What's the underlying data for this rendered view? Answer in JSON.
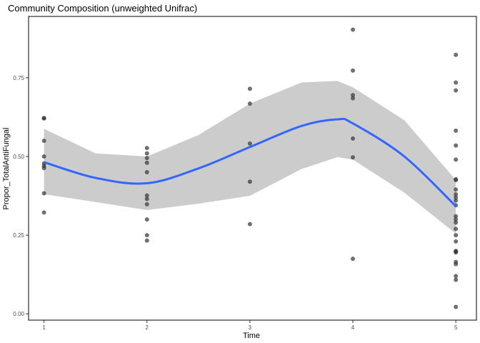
{
  "chart_data": {
    "type": "scatter",
    "title": "Community Composition (unweighted Unifrac)",
    "xlabel": "Time",
    "ylabel": "Propor_TotalAntiFungal",
    "x_ticks": [
      1,
      2,
      3,
      4,
      5
    ],
    "x_tick_labels": [
      "1",
      "2",
      "3",
      "4",
      "5"
    ],
    "y_ticks": [
      0,
      0.25,
      0.5,
      0.75
    ],
    "y_tick_labels": [
      "0.00",
      "0.25",
      "0.50",
      "0.75"
    ],
    "xlim": [
      0.85,
      5.2
    ],
    "ylim": [
      -0.02,
      0.945
    ],
    "grid": false,
    "colors": {
      "points": "#333333",
      "smooth_line": "#3366ff",
      "ribbon": "#cccccc",
      "panel_border": "#000000"
    },
    "points": [
      {
        "x": 1,
        "y": 0.622
      },
      {
        "x": 1,
        "y": 0.621
      },
      {
        "x": 1,
        "y": 0.55
      },
      {
        "x": 1,
        "y": 0.5
      },
      {
        "x": 1,
        "y": 0.478
      },
      {
        "x": 1,
        "y": 0.47
      },
      {
        "x": 1,
        "y": 0.463
      },
      {
        "x": 1,
        "y": 0.383
      },
      {
        "x": 1,
        "y": 0.322
      },
      {
        "x": 2,
        "y": 0.527
      },
      {
        "x": 2,
        "y": 0.51
      },
      {
        "x": 2,
        "y": 0.495
      },
      {
        "x": 2,
        "y": 0.48
      },
      {
        "x": 2,
        "y": 0.45
      },
      {
        "x": 2,
        "y": 0.376
      },
      {
        "x": 2,
        "y": 0.365
      },
      {
        "x": 2,
        "y": 0.348
      },
      {
        "x": 2,
        "y": 0.3
      },
      {
        "x": 2,
        "y": 0.25
      },
      {
        "x": 2,
        "y": 0.233
      },
      {
        "x": 3,
        "y": 0.715
      },
      {
        "x": 3,
        "y": 0.668
      },
      {
        "x": 3,
        "y": 0.541
      },
      {
        "x": 3,
        "y": 0.42
      },
      {
        "x": 3,
        "y": 0.285
      },
      {
        "x": 4,
        "y": 0.903
      },
      {
        "x": 4,
        "y": 0.773
      },
      {
        "x": 4,
        "y": 0.695
      },
      {
        "x": 4,
        "y": 0.685
      },
      {
        "x": 4,
        "y": 0.557
      },
      {
        "x": 4,
        "y": 0.497
      },
      {
        "x": 4,
        "y": 0.175
      },
      {
        "x": 5,
        "y": 0.823
      },
      {
        "x": 5,
        "y": 0.735
      },
      {
        "x": 5,
        "y": 0.71
      },
      {
        "x": 5,
        "y": 0.582
      },
      {
        "x": 5,
        "y": 0.535
      },
      {
        "x": 5,
        "y": 0.49
      },
      {
        "x": 5,
        "y": 0.428
      },
      {
        "x": 5,
        "y": 0.425
      },
      {
        "x": 5,
        "y": 0.395
      },
      {
        "x": 5,
        "y": 0.38
      },
      {
        "x": 5,
        "y": 0.37
      },
      {
        "x": 5,
        "y": 0.36
      },
      {
        "x": 5,
        "y": 0.345
      },
      {
        "x": 5,
        "y": 0.31
      },
      {
        "x": 5,
        "y": 0.3
      },
      {
        "x": 5,
        "y": 0.29
      },
      {
        "x": 5,
        "y": 0.27
      },
      {
        "x": 5,
        "y": 0.25
      },
      {
        "x": 5,
        "y": 0.23
      },
      {
        "x": 5,
        "y": 0.2
      },
      {
        "x": 5,
        "y": 0.198
      },
      {
        "x": 5,
        "y": 0.195
      },
      {
        "x": 5,
        "y": 0.165
      },
      {
        "x": 5,
        "y": 0.158
      },
      {
        "x": 5,
        "y": 0.12
      },
      {
        "x": 5,
        "y": 0.108
      },
      {
        "x": 5,
        "y": 0.022
      }
    ],
    "smooth": {
      "x": [
        1,
        1.5,
        2,
        2.5,
        3,
        3.5,
        3.85,
        4,
        4.5,
        5
      ],
      "y": [
        0.482,
        0.432,
        0.415,
        0.462,
        0.53,
        0.597,
        0.618,
        0.605,
        0.5,
        0.342
      ],
      "lower": [
        0.38,
        0.355,
        0.33,
        0.35,
        0.375,
        0.46,
        0.498,
        0.49,
        0.385,
        0.255
      ],
      "upper": [
        0.588,
        0.51,
        0.5,
        0.568,
        0.668,
        0.735,
        0.74,
        0.72,
        0.615,
        0.425
      ]
    }
  }
}
